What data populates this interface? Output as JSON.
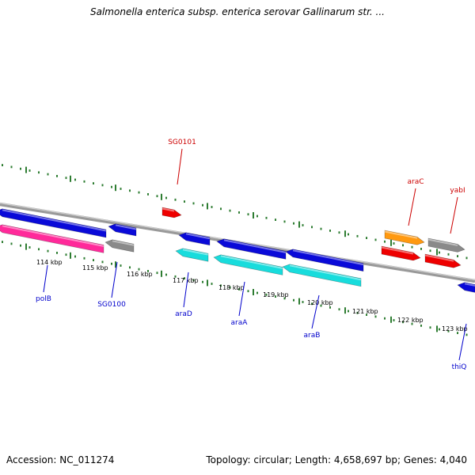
{
  "title": "Salmonella enterica subsp. enterica serovar Gallinarum str. ...",
  "footer": {
    "accession": "Accession: NC_011274",
    "topology": "Topology: circular; Length: 4,658,697 bp; Genes: 4,040"
  },
  "colors": {
    "forward_label": "#cc0000",
    "reverse_label": "#0000cc",
    "axis": "#999999",
    "tick": "#2e7d32",
    "blue": "#0a0ad8",
    "cyan": "#18dcdc",
    "pink": "#ff2a9a",
    "grey": "#8a8a8a",
    "red": "#ee0000",
    "orange": "#ff9910"
  },
  "ticks": {
    "labels": [
      "114 kbp",
      "115 kbp",
      "116 kbp",
      "117 kbp",
      "118 kbp",
      "119 kbp",
      "120 kbp",
      "121 kbp",
      "122 kbp",
      "123 kbp"
    ]
  },
  "genes": [
    {
      "label": "polB",
      "strand": "reverse",
      "color": "pink",
      "lane": 2
    },
    {
      "label": "",
      "strand": "reverse",
      "color": "blue",
      "lane": 1
    },
    {
      "label": "SG0100",
      "strand": "reverse",
      "color": "grey",
      "lane": 2
    },
    {
      "label": "",
      "strand": "reverse",
      "color": "blue",
      "lane": 1
    },
    {
      "label": "SG0101",
      "strand": "forward",
      "color": "red",
      "lane": 1
    },
    {
      "label": "araD",
      "strand": "reverse",
      "color": "blue",
      "lane": 1
    },
    {
      "label": "",
      "strand": "reverse",
      "color": "cyan",
      "lane": 2
    },
    {
      "label": "araA",
      "strand": "reverse",
      "color": "blue",
      "lane": 1
    },
    {
      "label": "",
      "strand": "reverse",
      "color": "cyan",
      "lane": 2
    },
    {
      "label": "araB",
      "strand": "reverse",
      "color": "blue",
      "lane": 1
    },
    {
      "label": "",
      "strand": "reverse",
      "color": "cyan",
      "lane": 2
    },
    {
      "label": "araC",
      "strand": "forward",
      "color": "orange",
      "lane": 1
    },
    {
      "label": "",
      "strand": "forward",
      "color": "red",
      "lane": 2
    },
    {
      "label": "yabI",
      "strand": "forward",
      "color": "grey",
      "lane": 1
    },
    {
      "label": "",
      "strand": "forward",
      "color": "red",
      "lane": 2
    },
    {
      "label": "thiQ",
      "strand": "reverse",
      "color": "blue",
      "lane": 1
    }
  ]
}
